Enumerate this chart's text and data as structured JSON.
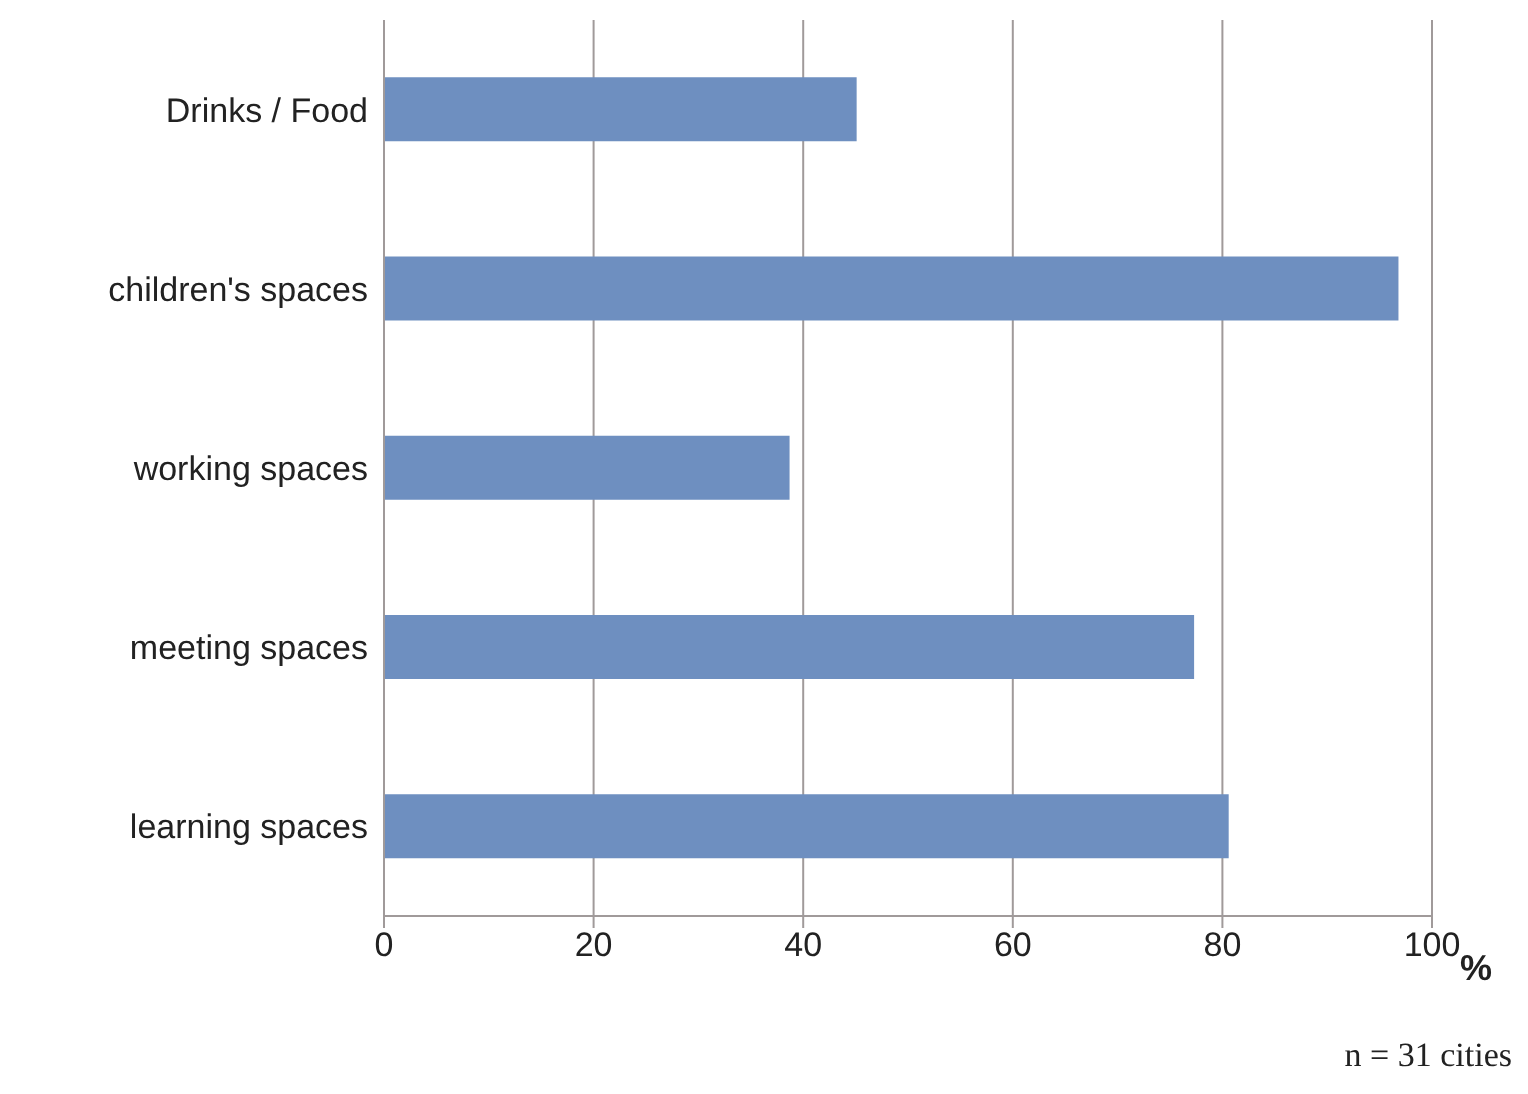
{
  "chart_data": {
    "type": "bar",
    "orientation": "horizontal",
    "categories": [
      "Drinks / Food",
      "children's spaces",
      "working spaces",
      "meeting spaces",
      "learning spaces"
    ],
    "values": [
      45.1,
      96.8,
      38.7,
      77.3,
      80.6
    ],
    "color": "#6e8fc0",
    "xlim": [
      0,
      100
    ],
    "xticks": [
      0,
      20,
      40,
      60,
      80,
      100
    ],
    "grid": "x",
    "xlabel": "%",
    "annotations": [
      "n = 31 cities"
    ]
  }
}
